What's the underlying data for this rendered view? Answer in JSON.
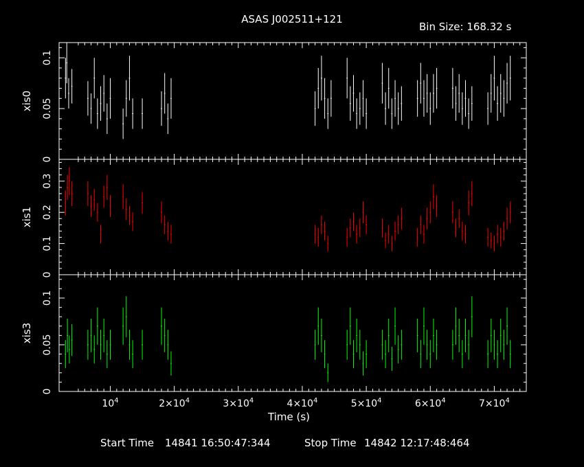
{
  "title": "ASAS J002511+121",
  "bin_size_label": "Bin Size: 168.32 s",
  "footer": {
    "start_label": "Start Time",
    "start_value": "14841 16:50:47:344",
    "stop_label": "Stop Time",
    "stop_value": "14842 12:17:48:464"
  },
  "colors": {
    "background": "#000000",
    "axes": "#ffffff",
    "xis0": "#ffffff",
    "xis1": "#ff0000",
    "xis3": "#00ff00"
  },
  "chart_data": {
    "type": "scatter",
    "xlabel": "Time (s)",
    "xlim": [
      2000,
      75000
    ],
    "xticks": [
      10000,
      20000,
      30000,
      40000,
      50000,
      60000,
      70000
    ],
    "xtick_labels": [
      "10^4",
      "2×10^4",
      "3×10^4",
      "4×10^4",
      "5×10^4",
      "6×10^4",
      "7×10^4"
    ],
    "error_bars": true,
    "panels": [
      {
        "name": "xis0",
        "ylabel": "xis0",
        "ylim": [
          0,
          0.115
        ],
        "yticks": [
          0,
          0.05,
          0.1
        ],
        "ytick_labels": [
          "0",
          "0.05",
          "0.1"
        ],
        "color": "#ffffff",
        "points": [
          [
            3000,
            0.08,
            0.02
          ],
          [
            3200,
            0.095,
            0.02
          ],
          [
            3500,
            0.065,
            0.015
          ],
          [
            4000,
            0.072,
            0.017
          ],
          [
            6500,
            0.06,
            0.017
          ],
          [
            7000,
            0.05,
            0.015
          ],
          [
            7500,
            0.08,
            0.02
          ],
          [
            8000,
            0.045,
            0.015
          ],
          [
            8500,
            0.055,
            0.017
          ],
          [
            9000,
            0.065,
            0.018
          ],
          [
            9500,
            0.04,
            0.015
          ],
          [
            10000,
            0.06,
            0.02
          ],
          [
            12000,
            0.035,
            0.015
          ],
          [
            12500,
            0.06,
            0.018
          ],
          [
            13000,
            0.08,
            0.022
          ],
          [
            13500,
            0.045,
            0.015
          ],
          [
            15000,
            0.045,
            0.015
          ],
          [
            18000,
            0.05,
            0.017
          ],
          [
            18500,
            0.065,
            0.02
          ],
          [
            19000,
            0.04,
            0.015
          ],
          [
            19500,
            0.06,
            0.02
          ],
          [
            42000,
            0.05,
            0.017
          ],
          [
            42500,
            0.07,
            0.02
          ],
          [
            43000,
            0.08,
            0.022
          ],
          [
            43500,
            0.06,
            0.02
          ],
          [
            44000,
            0.045,
            0.015
          ],
          [
            44500,
            0.06,
            0.018
          ],
          [
            47000,
            0.08,
            0.02
          ],
          [
            47500,
            0.055,
            0.017
          ],
          [
            48000,
            0.065,
            0.018
          ],
          [
            48500,
            0.045,
            0.015
          ],
          [
            49000,
            0.05,
            0.016
          ],
          [
            49500,
            0.06,
            0.018
          ],
          [
            50000,
            0.045,
            0.015
          ],
          [
            52500,
            0.075,
            0.02
          ],
          [
            53000,
            0.05,
            0.016
          ],
          [
            53500,
            0.07,
            0.02
          ],
          [
            54000,
            0.045,
            0.015
          ],
          [
            54500,
            0.06,
            0.018
          ],
          [
            55000,
            0.05,
            0.016
          ],
          [
            55500,
            0.055,
            0.017
          ],
          [
            58000,
            0.06,
            0.018
          ],
          [
            58500,
            0.075,
            0.02
          ],
          [
            59000,
            0.06,
            0.018
          ],
          [
            59500,
            0.065,
            0.019
          ],
          [
            60000,
            0.05,
            0.016
          ],
          [
            60500,
            0.065,
            0.019
          ],
          [
            61000,
            0.07,
            0.02
          ],
          [
            63500,
            0.07,
            0.02
          ],
          [
            64000,
            0.055,
            0.017
          ],
          [
            64500,
            0.065,
            0.019
          ],
          [
            65000,
            0.05,
            0.016
          ],
          [
            65500,
            0.06,
            0.018
          ],
          [
            66000,
            0.045,
            0.015
          ],
          [
            66500,
            0.055,
            0.017
          ],
          [
            69000,
            0.05,
            0.016
          ],
          [
            69500,
            0.065,
            0.019
          ],
          [
            70000,
            0.08,
            0.022
          ],
          [
            70500,
            0.055,
            0.017
          ],
          [
            71000,
            0.065,
            0.019
          ],
          [
            71500,
            0.06,
            0.018
          ],
          [
            72000,
            0.075,
            0.02
          ],
          [
            72500,
            0.08,
            0.022
          ]
        ]
      },
      {
        "name": "xis1",
        "ylabel": "xis1",
        "ylim": [
          0,
          0.37
        ],
        "yticks": [
          0,
          0.1,
          0.2,
          0.3
        ],
        "ytick_labels": [
          "0",
          "0.1",
          "0.2",
          "0.3"
        ],
        "color": "#ff0000",
        "points": [
          [
            3000,
            0.23,
            0.04
          ],
          [
            3300,
            0.28,
            0.04
          ],
          [
            3600,
            0.3,
            0.045
          ],
          [
            4000,
            0.26,
            0.04
          ],
          [
            6500,
            0.26,
            0.04
          ],
          [
            7000,
            0.22,
            0.035
          ],
          [
            7500,
            0.24,
            0.035
          ],
          [
            8000,
            0.2,
            0.03
          ],
          [
            8500,
            0.13,
            0.03
          ],
          [
            9000,
            0.25,
            0.035
          ],
          [
            9500,
            0.28,
            0.04
          ],
          [
            10000,
            0.22,
            0.035
          ],
          [
            12000,
            0.25,
            0.04
          ],
          [
            12500,
            0.21,
            0.035
          ],
          [
            13000,
            0.19,
            0.03
          ],
          [
            13500,
            0.17,
            0.03
          ],
          [
            15000,
            0.23,
            0.035
          ],
          [
            18000,
            0.2,
            0.035
          ],
          [
            18500,
            0.16,
            0.03
          ],
          [
            19000,
            0.14,
            0.03
          ],
          [
            19500,
            0.13,
            0.03
          ],
          [
            42000,
            0.13,
            0.03
          ],
          [
            42500,
            0.12,
            0.03
          ],
          [
            43000,
            0.16,
            0.03
          ],
          [
            43500,
            0.14,
            0.03
          ],
          [
            44000,
            0.1,
            0.025
          ],
          [
            47000,
            0.12,
            0.03
          ],
          [
            47500,
            0.15,
            0.03
          ],
          [
            48000,
            0.17,
            0.03
          ],
          [
            48500,
            0.13,
            0.03
          ],
          [
            49000,
            0.15,
            0.03
          ],
          [
            49500,
            0.2,
            0.035
          ],
          [
            50000,
            0.16,
            0.03
          ],
          [
            52500,
            0.15,
            0.03
          ],
          [
            53000,
            0.11,
            0.025
          ],
          [
            53500,
            0.13,
            0.03
          ],
          [
            54000,
            0.1,
            0.025
          ],
          [
            54500,
            0.14,
            0.03
          ],
          [
            55000,
            0.16,
            0.03
          ],
          [
            55500,
            0.18,
            0.035
          ],
          [
            58000,
            0.12,
            0.03
          ],
          [
            58500,
            0.16,
            0.03
          ],
          [
            59000,
            0.13,
            0.03
          ],
          [
            59500,
            0.18,
            0.035
          ],
          [
            60000,
            0.2,
            0.035
          ],
          [
            60500,
            0.25,
            0.04
          ],
          [
            61000,
            0.22,
            0.035
          ],
          [
            63500,
            0.2,
            0.035
          ],
          [
            64000,
            0.15,
            0.03
          ],
          [
            64500,
            0.18,
            0.03
          ],
          [
            65000,
            0.14,
            0.03
          ],
          [
            65500,
            0.13,
            0.03
          ],
          [
            66000,
            0.23,
            0.04
          ],
          [
            66500,
            0.26,
            0.04
          ],
          [
            69000,
            0.12,
            0.03
          ],
          [
            69500,
            0.11,
            0.025
          ],
          [
            70000,
            0.1,
            0.025
          ],
          [
            70500,
            0.13,
            0.03
          ],
          [
            71000,
            0.12,
            0.03
          ],
          [
            71500,
            0.14,
            0.03
          ],
          [
            72000,
            0.18,
            0.035
          ],
          [
            72500,
            0.2,
            0.035
          ]
        ]
      },
      {
        "name": "xis3",
        "ylabel": "xis3",
        "ylim": [
          0,
          0.125
        ],
        "yticks": [
          0,
          0.05,
          0.1
        ],
        "ytick_labels": [
          "0",
          "0.05",
          "0.1"
        ],
        "color": "#00ff00",
        "points": [
          [
            3000,
            0.04,
            0.015
          ],
          [
            3300,
            0.06,
            0.018
          ],
          [
            3600,
            0.045,
            0.015
          ],
          [
            4000,
            0.055,
            0.017
          ],
          [
            6500,
            0.05,
            0.016
          ],
          [
            7000,
            0.06,
            0.018
          ],
          [
            7500,
            0.045,
            0.015
          ],
          [
            8000,
            0.07,
            0.02
          ],
          [
            8500,
            0.05,
            0.016
          ],
          [
            9000,
            0.06,
            0.018
          ],
          [
            9500,
            0.04,
            0.015
          ],
          [
            10000,
            0.05,
            0.016
          ],
          [
            12000,
            0.07,
            0.02
          ],
          [
            12500,
            0.08,
            0.022
          ],
          [
            13000,
            0.05,
            0.016
          ],
          [
            13500,
            0.04,
            0.015
          ],
          [
            15000,
            0.05,
            0.016
          ],
          [
            18000,
            0.07,
            0.02
          ],
          [
            18500,
            0.06,
            0.018
          ],
          [
            19000,
            0.05,
            0.016
          ],
          [
            19500,
            0.03,
            0.013
          ],
          [
            42000,
            0.05,
            0.016
          ],
          [
            42500,
            0.07,
            0.02
          ],
          [
            43000,
            0.06,
            0.018
          ],
          [
            43500,
            0.04,
            0.015
          ],
          [
            44000,
            0.02,
            0.01
          ],
          [
            47000,
            0.05,
            0.016
          ],
          [
            47500,
            0.07,
            0.02
          ],
          [
            48000,
            0.04,
            0.015
          ],
          [
            48500,
            0.06,
            0.018
          ],
          [
            49000,
            0.05,
            0.016
          ],
          [
            49500,
            0.03,
            0.013
          ],
          [
            50000,
            0.04,
            0.015
          ],
          [
            52500,
            0.05,
            0.016
          ],
          [
            53000,
            0.04,
            0.015
          ],
          [
            53500,
            0.06,
            0.018
          ],
          [
            54000,
            0.035,
            0.013
          ],
          [
            54500,
            0.07,
            0.02
          ],
          [
            55000,
            0.045,
            0.015
          ],
          [
            55500,
            0.05,
            0.016
          ],
          [
            58000,
            0.06,
            0.018
          ],
          [
            58500,
            0.04,
            0.015
          ],
          [
            59000,
            0.07,
            0.02
          ],
          [
            59500,
            0.05,
            0.016
          ],
          [
            60000,
            0.04,
            0.015
          ],
          [
            60500,
            0.06,
            0.018
          ],
          [
            61000,
            0.05,
            0.016
          ],
          [
            63500,
            0.05,
            0.016
          ],
          [
            64000,
            0.07,
            0.02
          ],
          [
            64500,
            0.06,
            0.018
          ],
          [
            65000,
            0.04,
            0.015
          ],
          [
            65500,
            0.06,
            0.018
          ],
          [
            66000,
            0.05,
            0.016
          ],
          [
            66500,
            0.08,
            0.022
          ],
          [
            69000,
            0.04,
            0.015
          ],
          [
            69500,
            0.06,
            0.018
          ],
          [
            70000,
            0.05,
            0.016
          ],
          [
            70500,
            0.04,
            0.015
          ],
          [
            71000,
            0.06,
            0.018
          ],
          [
            71500,
            0.05,
            0.016
          ],
          [
            72000,
            0.07,
            0.02
          ],
          [
            72500,
            0.04,
            0.015
          ]
        ]
      }
    ]
  }
}
